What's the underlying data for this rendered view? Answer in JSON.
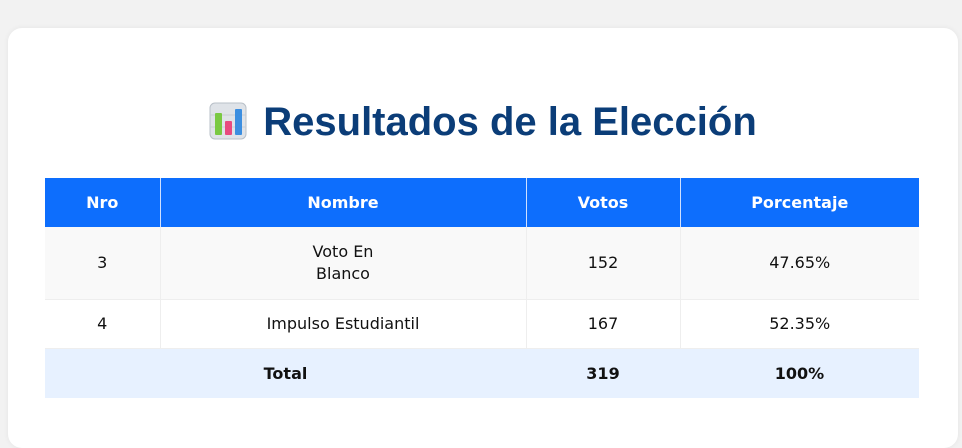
{
  "header": {
    "title": "Resultados de la Elección"
  },
  "table": {
    "columns": [
      "Nro",
      "Nombre",
      "Votos",
      "Porcentaje"
    ],
    "rows": [
      [
        "3",
        "Voto En\nBlanco",
        "152",
        "47.65%"
      ],
      [
        "4",
        "Impulso Estudiantil",
        "167",
        "52.35%"
      ]
    ],
    "total": [
      "Total",
      "319",
      "100%"
    ]
  }
}
